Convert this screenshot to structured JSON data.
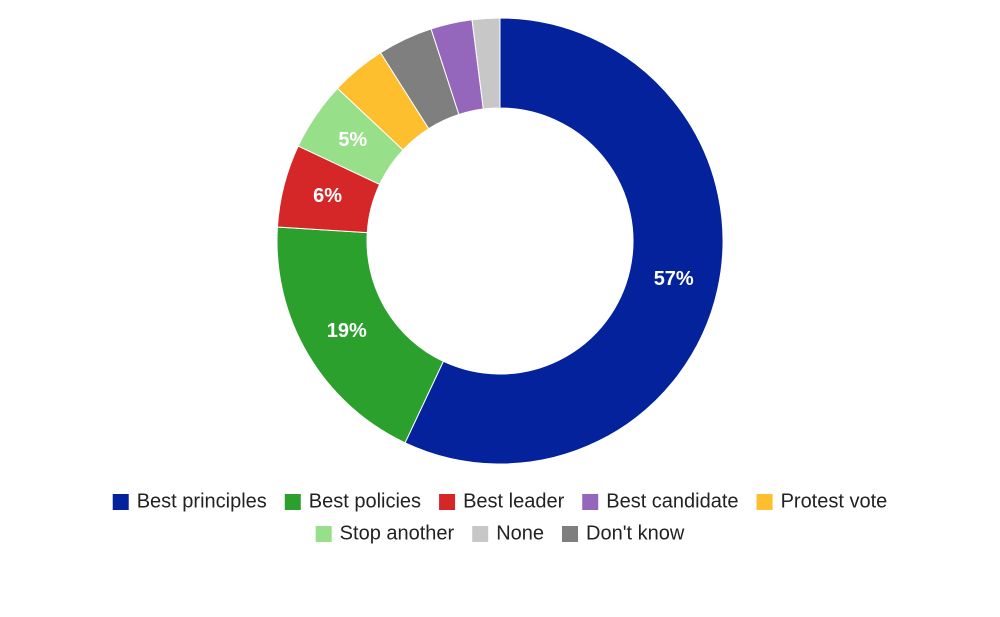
{
  "chart_data": {
    "type": "donut",
    "categories": [
      "Best principles",
      "Best policies",
      "Best leader",
      "Stop another",
      "Protest vote",
      "Don't know",
      "Best candidate",
      "None"
    ],
    "values": [
      57,
      19,
      6,
      5,
      4,
      4,
      3,
      2
    ],
    "value_labels": [
      "57%",
      "19%",
      "6%",
      "5%",
      null,
      null,
      null,
      null
    ],
    "colors": [
      "#03229b",
      "#2ca02c",
      "#d62728",
      "#98df8a",
      "#fdbf2d",
      "#7f7f7f",
      "#9467bd",
      "#c7c7c7"
    ],
    "legend": "bottom"
  }
}
